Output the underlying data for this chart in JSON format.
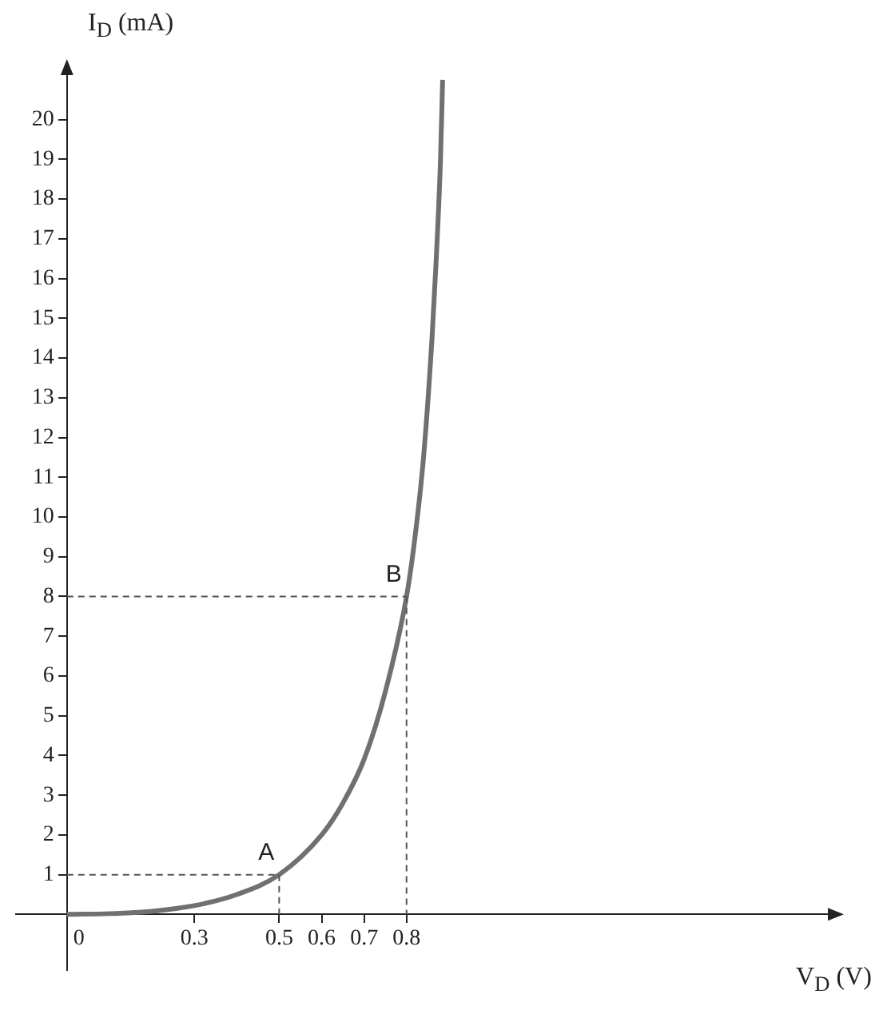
{
  "chart_data": {
    "type": "line",
    "xlabel": "V$_{D}$ (V)",
    "ylabel": "I$_{D}$ (mA)",
    "x": [
      0,
      0.1,
      0.2,
      0.3,
      0.4,
      0.5,
      0.6,
      0.65,
      0.7,
      0.75,
      0.8,
      0.82,
      0.84,
      0.86,
      0.87,
      0.88,
      0.885
    ],
    "series": [
      {
        "color": "#707070",
        "values": [
          0,
          0.02,
          0.08,
          0.22,
          0.5,
          1,
          2,
          2.8,
          3.9,
          5.6,
          8,
          9.5,
          11.5,
          14.5,
          16.5,
          19,
          21
        ]
      }
    ],
    "xlim": [
      -0.12,
      1.8
    ],
    "ylim": [
      -1.4,
      21.2
    ],
    "xticks": [
      0,
      0.3,
      0.5,
      0.6,
      0.7,
      0.8
    ],
    "yticks": [
      1,
      2,
      3,
      4,
      5,
      6,
      7,
      8,
      9,
      10,
      11,
      12,
      13,
      14,
      15,
      16,
      17,
      18,
      19,
      20
    ],
    "annotations": [
      {
        "text": "A",
        "x": 0.5,
        "y": 1
      },
      {
        "text": "B",
        "x": 0.8,
        "y": 8
      }
    ],
    "grid": false,
    "legend": false,
    "marker": "none",
    "line_style": "solid"
  }
}
